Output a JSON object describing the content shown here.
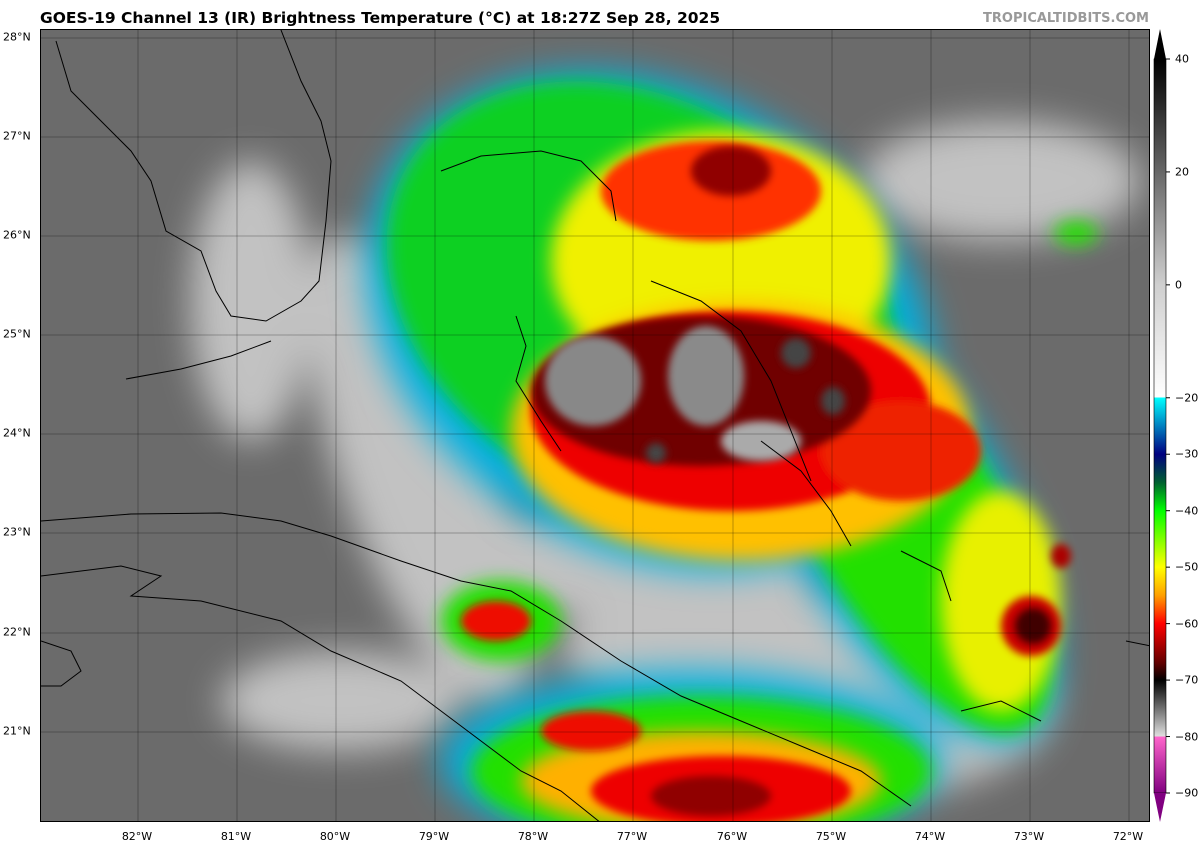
{
  "header": {
    "title": "GOES-19 Channel 13 (IR) Brightness Temperature (°C) at 18:27Z Sep 28, 2025",
    "credit": "TROPICALTIDBITS.COM"
  },
  "map": {
    "extent": {
      "lon": [
        -83.0,
        -71.8
      ],
      "lat": [
        20.08,
        28.08
      ]
    },
    "lon_ticks": [
      "82°W",
      "81°W",
      "80°W",
      "79°W",
      "78°W",
      "77°W",
      "76°W",
      "75°W",
      "74°W",
      "73°W",
      "72°W"
    ],
    "lat_ticks": [
      "28°N",
      "27°N",
      "26°N",
      "25°N",
      "24°N",
      "23°N",
      "22°N",
      "21°N"
    ],
    "gridlines": true,
    "background_color": "#6b6b6b"
  },
  "colorbar": {
    "range": [
      -90,
      40
    ],
    "labels": [
      "40",
      "20",
      "0",
      "−20",
      "−30",
      "−40",
      "−50",
      "−60",
      "−70",
      "−80",
      "−90"
    ],
    "stops": [
      {
        "v": 40,
        "c": "#000000"
      },
      {
        "v": 0,
        "c": "#cfcfcf"
      },
      {
        "v": -20,
        "c": "#ffffff"
      },
      {
        "v": -20,
        "c": "#00ffff"
      },
      {
        "v": -30,
        "c": "#000080"
      },
      {
        "v": -35,
        "c": "#006030"
      },
      {
        "v": -40,
        "c": "#00ff00"
      },
      {
        "v": -50,
        "c": "#ffff00"
      },
      {
        "v": -55,
        "c": "#ffa000"
      },
      {
        "v": -60,
        "c": "#ff0000"
      },
      {
        "v": -67,
        "c": "#600000"
      },
      {
        "v": -70,
        "c": "#000000"
      },
      {
        "v": -80,
        "c": "#e0e0e0"
      },
      {
        "v": -80,
        "c": "#ff66cc"
      },
      {
        "v": -90,
        "c": "#800080"
      }
    ]
  }
}
